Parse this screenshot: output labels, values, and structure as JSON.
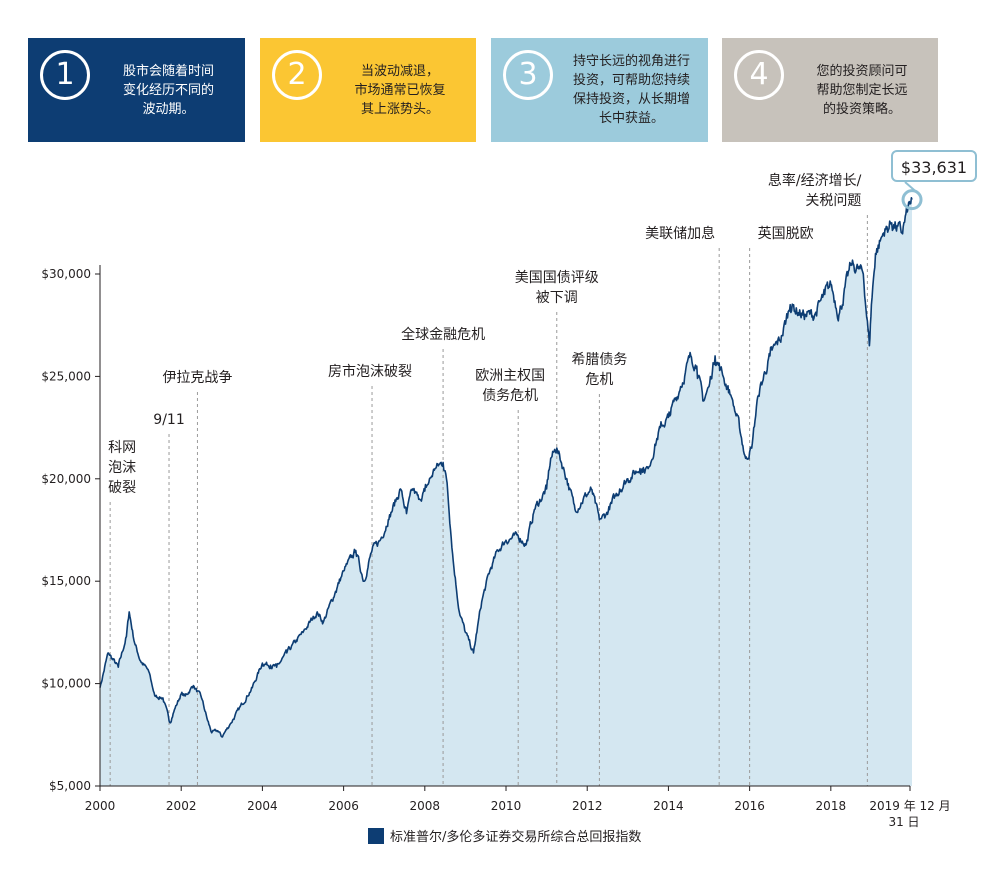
{
  "boxes": [
    {
      "num": "1",
      "text": "股市会随着时间\n变化经历不同的\n波动期。"
    },
    {
      "num": "2",
      "text": "当波动减退，\n市场通常已恢复\n其上涨势头。"
    },
    {
      "num": "3",
      "text": "持守长远的视角进行\n投资，可帮助您持续\n保持投资，从长期增\n长中获益。"
    },
    {
      "num": "4",
      "text": "您的投资顾问可\n帮助您制定长远\n的投资策略。"
    }
  ],
  "callout_value": "$33,631",
  "legend_label": "标准普尔/多伦多证券交易所综合总回报指数",
  "colors": {
    "line": "#0d3d73",
    "area": "#d4e7f1",
    "box1": "#0d3d73",
    "box2": "#fbc633",
    "box3": "#9ccbdc",
    "box4": "#c7c2bb"
  },
  "chart_data": {
    "type": "area",
    "title": "",
    "xlabel": "",
    "ylabel": "",
    "ylim": [
      5000,
      35000
    ],
    "xlim": [
      2000.0,
      2020.0
    ],
    "y_ticks": [
      5000,
      10000,
      15000,
      20000,
      25000,
      30000
    ],
    "y_tick_labels": [
      "$5,000",
      "$10,000",
      "$15,000",
      "$20,000",
      "$25,000",
      "$30,000"
    ],
    "x_ticks": [
      2000,
      2002,
      2004,
      2006,
      2008,
      2010,
      2012,
      2014,
      2016,
      2018
    ],
    "x_tick_labels": [
      "2000",
      "2002",
      "2004",
      "2006",
      "2008",
      "2010",
      "2012",
      "2014",
      "2016",
      "2018"
    ],
    "x_end_label": [
      "2019 年 12 月",
      "31 日"
    ],
    "series": [
      {
        "name": "标准普尔/多伦多证券交易所综合总回报指数",
        "x": [
          2000.0,
          2000.2,
          2000.45,
          2000.65,
          2000.72,
          2000.85,
          2001.0,
          2001.2,
          2001.35,
          2001.55,
          2001.72,
          2001.85,
          2002.0,
          2002.1,
          2002.3,
          2002.5,
          2002.65,
          2002.75,
          2002.9,
          2003.0,
          2003.2,
          2003.5,
          2003.75,
          2004.0,
          2004.2,
          2004.35,
          2004.6,
          2005.0,
          2005.35,
          2005.5,
          2005.8,
          2006.0,
          2006.3,
          2006.5,
          2006.7,
          2006.9,
          2007.1,
          2007.4,
          2007.55,
          2007.7,
          2007.85,
          2008.0,
          2008.25,
          2008.45,
          2008.55,
          2008.7,
          2008.85,
          2009.0,
          2009.2,
          2009.4,
          2009.6,
          2009.8,
          2010.0,
          2010.3,
          2010.5,
          2010.7,
          2011.0,
          2011.1,
          2011.25,
          2011.5,
          2011.7,
          2011.9,
          2012.1,
          2012.3,
          2012.45,
          2012.6,
          2012.8,
          2013.0,
          2013.3,
          2013.5,
          2013.8,
          2014.0,
          2014.3,
          2014.55,
          2014.7,
          2014.85,
          2015.0,
          2015.15,
          2015.35,
          2015.55,
          2015.75,
          2015.9,
          2016.05,
          2016.2,
          2016.5,
          2016.8,
          2017.0,
          2017.3,
          2017.6,
          2017.85,
          2018.0,
          2018.2,
          2018.5,
          2018.8,
          2018.95,
          2019.0,
          2019.1,
          2019.3,
          2019.5,
          2019.75,
          2019.9,
          2020.0
        ],
        "y": [
          9800,
          11500,
          10800,
          12300,
          13500,
          12000,
          11100,
          10600,
          9400,
          9300,
          8100,
          8800,
          9500,
          9400,
          9900,
          9300,
          8200,
          7600,
          7700,
          7400,
          8000,
          9000,
          9800,
          11000,
          10900,
          10800,
          11500,
          12500,
          13500,
          13000,
          14500,
          15500,
          16500,
          15000,
          16500,
          17000,
          18000,
          19500,
          18300,
          19500,
          19000,
          19400,
          20500,
          20800,
          19800,
          16000,
          13500,
          12500,
          11500,
          14000,
          15500,
          16500,
          17000,
          17200,
          16800,
          18500,
          19500,
          21000,
          21500,
          20000,
          18500,
          19000,
          19500,
          18000,
          18200,
          18800,
          19500,
          20000,
          20500,
          20500,
          22500,
          23000,
          24500,
          26000,
          25500,
          23800,
          24500,
          26000,
          25000,
          24000,
          22500,
          21000,
          21500,
          24000,
          26000,
          27000,
          28500,
          28000,
          28000,
          29000,
          29500,
          28000,
          30500,
          30000,
          26500,
          28500,
          31000,
          32000,
          32500,
          32000,
          33200,
          33631
        ]
      }
    ],
    "annotations": [
      {
        "x": 2000.25,
        "label": "科网\n泡沫\n破裂"
      },
      {
        "x": 2001.7,
        "label": "9/11"
      },
      {
        "x": 2002.4,
        "label": "伊拉克战争"
      },
      {
        "x": 2006.7,
        "label": "房市泡沫破裂"
      },
      {
        "x": 2008.45,
        "label": "全球金融危机"
      },
      {
        "x": 2010.3,
        "label": "欧洲主权国\n债务危机"
      },
      {
        "x": 2011.25,
        "label": "美国国债评级\n被下调"
      },
      {
        "x": 2012.3,
        "label": "希腊债务\n危机"
      },
      {
        "x": 2015.25,
        "label": "美联储加息"
      },
      {
        "x": 2016.0,
        "label": "英国脱欧"
      },
      {
        "x": 2018.9,
        "label": "息率/经济增长/\n关税问题"
      }
    ],
    "grid": false,
    "legend": "bottom-center"
  }
}
